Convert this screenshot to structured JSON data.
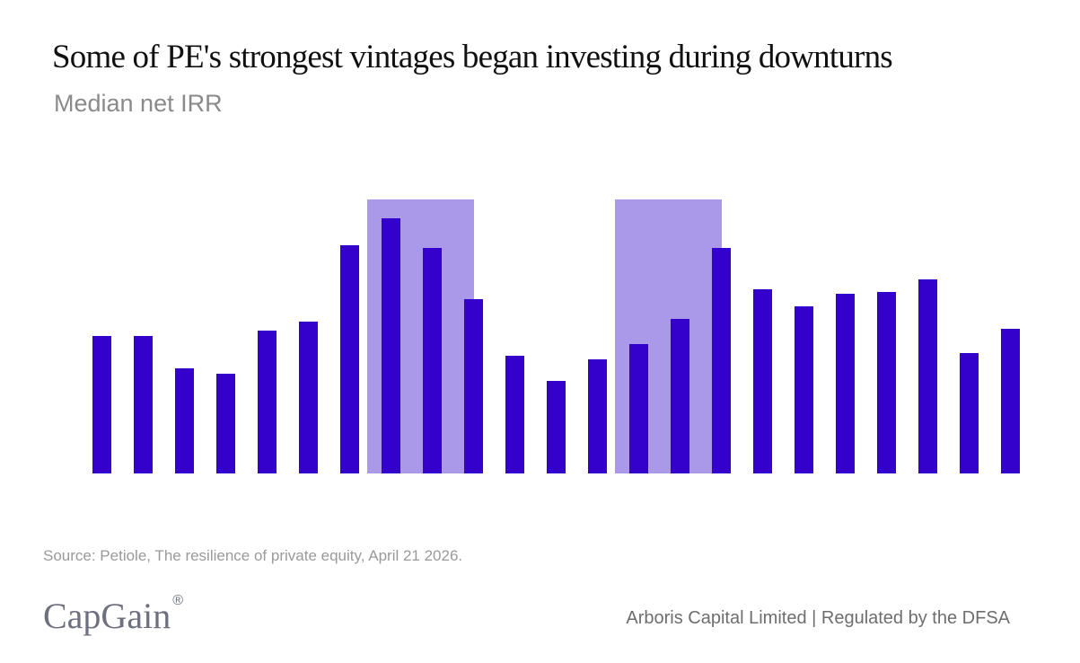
{
  "chart_data": {
    "type": "bar",
    "title": "Some of PE's strongest vintages began investing during downturns",
    "subtitle": "Median net IRR",
    "xlabel": "",
    "ylabel": "",
    "ylim": [
      0,
      30.5
    ],
    "grid": false,
    "axes_visible": false,
    "values": [
      15.3,
      15.3,
      11.7,
      11.1,
      15.9,
      16.9,
      25.4,
      28.4,
      25.1,
      19.4,
      13.1,
      10.3,
      12.7,
      14.4,
      17.2,
      25.1,
      20.5,
      18.6,
      20.0,
      20.2,
      21.6,
      13.4,
      16.1
    ],
    "highlight_ranges": [
      [
        8,
        10
      ],
      [
        14,
        16
      ]
    ],
    "colors": {
      "bar": "#3300CC",
      "highlight": "#AA99E8"
    }
  },
  "source": "Source: Petiole, The resilience of private equity, April 21 2026.",
  "logo": {
    "text": "CapGain",
    "mark": "®"
  },
  "footer": "Arboris Capital Limited | Regulated by the DFSA"
}
